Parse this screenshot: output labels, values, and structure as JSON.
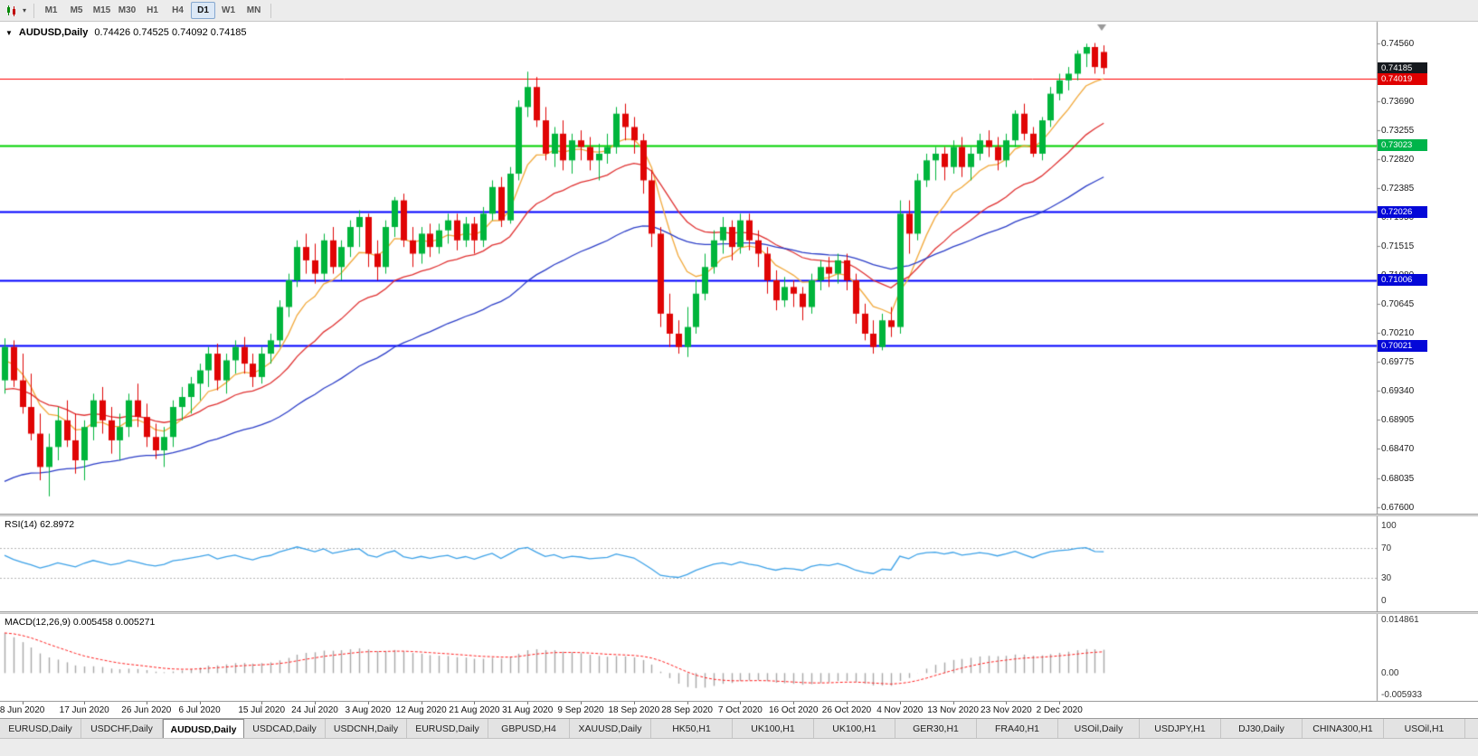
{
  "colors": {
    "bull": "#00b53c",
    "bear": "#e00505",
    "background": "#ffffff",
    "ma_fast": "#f2a93b",
    "ma_mid": "#e03131",
    "ma_slow": "#2c3ec8",
    "hline_red": "#ff0000",
    "hline_green": "#00d200",
    "hline_blue": "#0000ff"
  },
  "toolbar": {
    "timeframes": [
      {
        "label": "M1"
      },
      {
        "label": "M5"
      },
      {
        "label": "M15"
      },
      {
        "label": "M30"
      },
      {
        "label": "H1"
      },
      {
        "label": "H4"
      },
      {
        "label": "D1",
        "active": true
      },
      {
        "label": "W1"
      },
      {
        "label": "MN"
      }
    ]
  },
  "chart": {
    "title_symbol": "AUDUSD,Daily",
    "title_ohlc": "0.74426 0.74525 0.74092 0.74185"
  },
  "chart_data": {
    "type": "candlestick",
    "symbol": "AUDUSD",
    "timeframe": "Daily",
    "current_bar": {
      "open": 0.74426,
      "high": 0.74525,
      "low": 0.74092,
      "close": 0.74185
    },
    "price_axis": {
      "min": 0.675,
      "max": 0.7488,
      "ticks": [
        0.7456,
        0.74125,
        0.7369,
        0.73255,
        0.7282,
        0.72385,
        0.7195,
        0.71515,
        0.7108,
        0.70645,
        0.7021,
        0.69775,
        0.6934,
        0.68905,
        0.6847,
        0.68035,
        0.676
      ],
      "badges": [
        {
          "price": 0.74185,
          "color": "#15191e"
        },
        {
          "price": 0.74019,
          "color": "#e00000"
        },
        {
          "price": 0.73023,
          "color": "#00b44a"
        },
        {
          "price": 0.72026,
          "color": "#0408d8"
        },
        {
          "price": 0.71006,
          "color": "#0408d8"
        },
        {
          "price": 0.70021,
          "color": "#0408d8"
        }
      ]
    },
    "hlines": [
      {
        "price": 0.74019,
        "color": "#ff0000",
        "width": 1
      },
      {
        "price": 0.73023,
        "color": "#00d200",
        "width": 2
      },
      {
        "price": 0.72026,
        "color": "#0000ff",
        "width": 2
      },
      {
        "price": 0.71006,
        "color": "#0000ff",
        "width": 2
      },
      {
        "price": 0.70021,
        "color": "#0000ff",
        "width": 2
      }
    ],
    "moving_averages": [
      {
        "name": "fast",
        "period": 8,
        "color": "#f2a93b",
        "seed": 0.6975
      },
      {
        "name": "mid",
        "period": 21,
        "color": "#e03131",
        "seed": 0.693
      },
      {
        "name": "slow",
        "period": 50,
        "color": "#2c3ec8",
        "seed": 0.679
      }
    ],
    "candles": [
      [
        0.695,
        0.7013,
        0.693,
        0.7
      ],
      [
        0.7,
        0.701,
        0.694,
        0.695
      ],
      [
        0.695,
        0.699,
        0.69,
        0.691
      ],
      [
        0.691,
        0.696,
        0.686,
        0.687
      ],
      [
        0.687,
        0.69,
        0.68,
        0.682
      ],
      [
        0.682,
        0.687,
        0.6776,
        0.685
      ],
      [
        0.685,
        0.691,
        0.683,
        0.689
      ],
      [
        0.689,
        0.692,
        0.685,
        0.686
      ],
      [
        0.686,
        0.69,
        0.681,
        0.683
      ],
      [
        0.683,
        0.689,
        0.68,
        0.688
      ],
      [
        0.688,
        0.693,
        0.686,
        0.692
      ],
      [
        0.692,
        0.694,
        0.687,
        0.689
      ],
      [
        0.689,
        0.691,
        0.684,
        0.686
      ],
      [
        0.686,
        0.69,
        0.683,
        0.688
      ],
      [
        0.688,
        0.693,
        0.6865,
        0.692
      ],
      [
        0.692,
        0.6945,
        0.688,
        0.6895
      ],
      [
        0.6895,
        0.6915,
        0.685,
        0.6865
      ],
      [
        0.6865,
        0.6885,
        0.6832,
        0.6845
      ],
      [
        0.6845,
        0.688,
        0.682,
        0.6865
      ],
      [
        0.6865,
        0.692,
        0.685,
        0.691
      ],
      [
        0.691,
        0.694,
        0.689,
        0.6925
      ],
      [
        0.6925,
        0.6955,
        0.69,
        0.6945
      ],
      [
        0.6945,
        0.6975,
        0.692,
        0.6965
      ],
      [
        0.6965,
        0.7,
        0.694,
        0.699
      ],
      [
        0.699,
        0.7005,
        0.6935,
        0.695
      ],
      [
        0.695,
        0.699,
        0.693,
        0.698
      ],
      [
        0.698,
        0.701,
        0.696,
        0.7
      ],
      [
        0.7,
        0.7015,
        0.696,
        0.6975
      ],
      [
        0.6975,
        0.699,
        0.694,
        0.6955
      ],
      [
        0.6955,
        0.7,
        0.6945,
        0.699
      ],
      [
        0.699,
        0.702,
        0.6975,
        0.701
      ],
      [
        0.701,
        0.707,
        0.7,
        0.706
      ],
      [
        0.706,
        0.711,
        0.7045,
        0.71
      ],
      [
        0.71,
        0.716,
        0.709,
        0.715
      ],
      [
        0.715,
        0.717,
        0.711,
        0.713
      ],
      [
        0.713,
        0.7155,
        0.7095,
        0.711
      ],
      [
        0.711,
        0.717,
        0.71,
        0.716
      ],
      [
        0.716,
        0.718,
        0.711,
        0.712
      ],
      [
        0.712,
        0.716,
        0.71,
        0.715
      ],
      [
        0.715,
        0.719,
        0.7135,
        0.718
      ],
      [
        0.718,
        0.7205,
        0.715,
        0.7195
      ],
      [
        0.7195,
        0.72,
        0.712,
        0.714
      ],
      [
        0.714,
        0.716,
        0.71,
        0.712
      ],
      [
        0.712,
        0.719,
        0.711,
        0.718
      ],
      [
        0.718,
        0.7225,
        0.7165,
        0.722
      ],
      [
        0.722,
        0.723,
        0.715,
        0.716
      ],
      [
        0.716,
        0.718,
        0.712,
        0.714
      ],
      [
        0.714,
        0.718,
        0.7125,
        0.717
      ],
      [
        0.717,
        0.7185,
        0.7135,
        0.715
      ],
      [
        0.715,
        0.7185,
        0.714,
        0.7175
      ],
      [
        0.7175,
        0.72,
        0.7155,
        0.719
      ],
      [
        0.719,
        0.72,
        0.7145,
        0.716
      ],
      [
        0.716,
        0.7195,
        0.715,
        0.7185
      ],
      [
        0.7185,
        0.7195,
        0.714,
        0.716
      ],
      [
        0.716,
        0.721,
        0.715,
        0.72
      ],
      [
        0.72,
        0.725,
        0.719,
        0.724
      ],
      [
        0.724,
        0.7255,
        0.718,
        0.719
      ],
      [
        0.719,
        0.727,
        0.7185,
        0.726
      ],
      [
        0.726,
        0.737,
        0.725,
        0.736
      ],
      [
        0.736,
        0.7413,
        0.7345,
        0.739
      ],
      [
        0.739,
        0.7405,
        0.733,
        0.734
      ],
      [
        0.734,
        0.736,
        0.728,
        0.729
      ],
      [
        0.729,
        0.733,
        0.727,
        0.732
      ],
      [
        0.732,
        0.734,
        0.7265,
        0.728
      ],
      [
        0.728,
        0.732,
        0.726,
        0.731
      ],
      [
        0.731,
        0.7325,
        0.728,
        0.73
      ],
      [
        0.73,
        0.7315,
        0.7265,
        0.728
      ],
      [
        0.728,
        0.7305,
        0.725,
        0.729
      ],
      [
        0.729,
        0.732,
        0.7275,
        0.73
      ],
      [
        0.73,
        0.736,
        0.729,
        0.735
      ],
      [
        0.735,
        0.7365,
        0.731,
        0.733
      ],
      [
        0.733,
        0.7345,
        0.729,
        0.731
      ],
      [
        0.731,
        0.732,
        0.723,
        0.725
      ],
      [
        0.725,
        0.7265,
        0.715,
        0.717
      ],
      [
        0.717,
        0.718,
        0.703,
        0.705
      ],
      [
        0.705,
        0.708,
        0.7,
        0.702
      ],
      [
        0.702,
        0.704,
        0.699,
        0.7
      ],
      [
        0.7,
        0.706,
        0.6985,
        0.703
      ],
      [
        0.703,
        0.71,
        0.702,
        0.708
      ],
      [
        0.708,
        0.714,
        0.707,
        0.712
      ],
      [
        0.712,
        0.7175,
        0.711,
        0.716
      ],
      [
        0.716,
        0.7195,
        0.714,
        0.718
      ],
      [
        0.718,
        0.719,
        0.713,
        0.715
      ],
      [
        0.715,
        0.72,
        0.714,
        0.719
      ],
      [
        0.719,
        0.72,
        0.7145,
        0.716
      ],
      [
        0.716,
        0.7175,
        0.712,
        0.714
      ],
      [
        0.714,
        0.715,
        0.708,
        0.71
      ],
      [
        0.71,
        0.7115,
        0.7055,
        0.707
      ],
      [
        0.707,
        0.7105,
        0.706,
        0.709
      ],
      [
        0.709,
        0.71,
        0.706,
        0.708
      ],
      [
        0.708,
        0.709,
        0.704,
        0.706
      ],
      [
        0.706,
        0.711,
        0.705,
        0.71
      ],
      [
        0.71,
        0.713,
        0.7085,
        0.712
      ],
      [
        0.712,
        0.7135,
        0.709,
        0.711
      ],
      [
        0.711,
        0.714,
        0.7095,
        0.713
      ],
      [
        0.713,
        0.714,
        0.7085,
        0.71
      ],
      [
        0.71,
        0.711,
        0.7035,
        0.705
      ],
      [
        0.705,
        0.7065,
        0.701,
        0.702
      ],
      [
        0.702,
        0.704,
        0.699,
        0.7
      ],
      [
        0.7,
        0.705,
        0.6995,
        0.704
      ],
      [
        0.704,
        0.706,
        0.7015,
        0.703
      ],
      [
        0.703,
        0.722,
        0.702,
        0.72
      ],
      [
        0.72,
        0.722,
        0.714,
        0.717
      ],
      [
        0.717,
        0.726,
        0.716,
        0.725
      ],
      [
        0.725,
        0.729,
        0.724,
        0.728
      ],
      [
        0.728,
        0.73,
        0.725,
        0.729
      ],
      [
        0.729,
        0.73,
        0.725,
        0.727
      ],
      [
        0.727,
        0.731,
        0.726,
        0.73
      ],
      [
        0.73,
        0.7315,
        0.7255,
        0.727
      ],
      [
        0.727,
        0.73,
        0.725,
        0.729
      ],
      [
        0.729,
        0.732,
        0.728,
        0.731
      ],
      [
        0.731,
        0.7325,
        0.7285,
        0.73
      ],
      [
        0.73,
        0.7315,
        0.7265,
        0.728
      ],
      [
        0.728,
        0.732,
        0.727,
        0.731
      ],
      [
        0.731,
        0.7355,
        0.73,
        0.735
      ],
      [
        0.735,
        0.7365,
        0.731,
        0.732
      ],
      [
        0.732,
        0.733,
        0.7285,
        0.729
      ],
      [
        0.729,
        0.7345,
        0.728,
        0.734
      ],
      [
        0.734,
        0.739,
        0.733,
        0.738
      ],
      [
        0.738,
        0.741,
        0.737,
        0.74
      ],
      [
        0.74,
        0.742,
        0.7385,
        0.741
      ],
      [
        0.741,
        0.7445,
        0.74,
        0.744
      ],
      [
        0.744,
        0.7455,
        0.742,
        0.745
      ],
      [
        0.745,
        0.7456,
        0.741,
        0.742
      ],
      [
        0.74426,
        0.74525,
        0.74092,
        0.74185
      ]
    ],
    "date_labels": [
      "8 Jun 2020",
      "17 Jun 2020",
      "26 Jun 2020",
      "6 Jul 2020",
      "15 Jul 2020",
      "24 Jul 2020",
      "3 Aug 2020",
      "12 Aug 2020",
      "21 Aug 2020",
      "31 Aug 2020",
      "9 Sep 2020",
      "18 Sep 2020",
      "28 Sep 2020",
      "7 Oct 2020",
      "16 Oct 2020",
      "26 Oct 2020",
      "4 Nov 2020",
      "13 Nov 2020",
      "23 Nov 2020",
      "2 Dec 2020"
    ],
    "date_label_indices": [
      2,
      9,
      16,
      22,
      29,
      35,
      41,
      47,
      53,
      59,
      65,
      71,
      77,
      83,
      89,
      95,
      101,
      107,
      113,
      119
    ],
    "rsi": {
      "label": "RSI(14) 62.8972",
      "period": 14,
      "value": 62.8972,
      "color": "#3da2e8",
      "scale": [
        100,
        70,
        30,
        0
      ],
      "dashed_levels": [
        70,
        30
      ]
    },
    "macd": {
      "label": "MACD(12,26,9) 0.005458 0.005271",
      "fast": 12,
      "slow": 26,
      "signal": 9,
      "value": 0.005458,
      "signal_value": 0.005271,
      "hist_color": "#a8a8a8",
      "signal_color": "#ff2020",
      "scale": [
        {
          "text": "0.014861",
          "value": 0.014861
        },
        {
          "text": "0.00",
          "value": 0
        },
        {
          "text": "-0.005933",
          "value": -0.005933
        }
      ],
      "max": 0.0149,
      "min": -0.0062
    }
  },
  "tabs": [
    {
      "label": "EURUSD,Daily"
    },
    {
      "label": "USDCHF,Daily"
    },
    {
      "label": "AUDUSD,Daily",
      "active": true
    },
    {
      "label": "USDCAD,Daily"
    },
    {
      "label": "USDCNH,Daily"
    },
    {
      "label": "EURUSD,Daily"
    },
    {
      "label": "GBPUSD,H4"
    },
    {
      "label": "XAUUSD,Daily"
    },
    {
      "label": "HK50,H1"
    },
    {
      "label": "UK100,H1"
    },
    {
      "label": "UK100,H1"
    },
    {
      "label": "GER30,H1"
    },
    {
      "label": "FRA40,H1"
    },
    {
      "label": "USOil,Daily"
    },
    {
      "label": "USDJPY,H1"
    },
    {
      "label": "DJ30,Daily"
    },
    {
      "label": "CHINA300,H1"
    },
    {
      "label": "USOil,H1"
    }
  ]
}
